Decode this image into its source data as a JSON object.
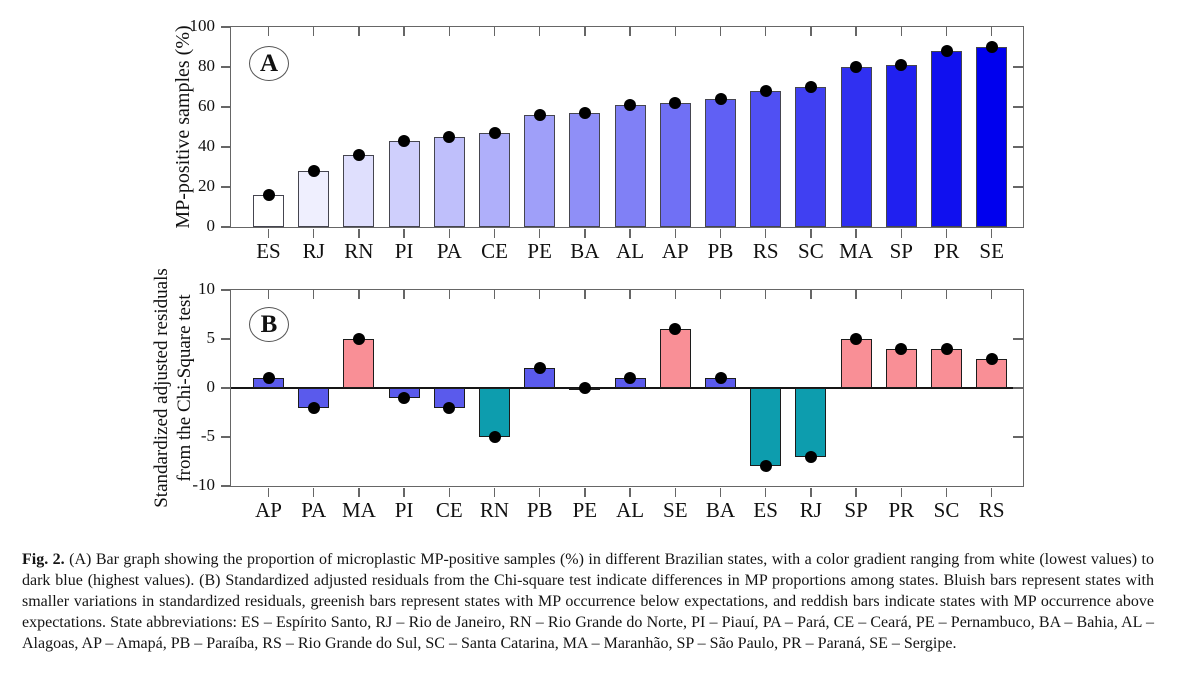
{
  "figure": {
    "caption_label": "Fig. 2.",
    "caption_text": "(A) Bar graph showing the proportion of microplastic MP-positive samples (%) in different Brazilian states, with a color gradient ranging from white (lowest values) to dark blue (highest values). (B) Standardized adjusted residuals from the Chi-square test indicate differences in MP proportions among states. Bluish bars represent states with smaller variations in standardized residuals, greenish bars represent states with MP occurrence below expectations, and reddish bars indicate states with MP occurrence above expectations. State abbreviations: ES – Espírito Santo, RJ – Rio de Janeiro, RN – Rio Grande do Norte, PI – Piauí, PA – Pará, CE – Ceará, PE – Pernambuco, BA – Bahia, AL – Alagoas, AP – Amapá, PB – Paraíba, RS – Rio Grande do Sul, SC – Santa Catarina, MA – Maranhão, SP – São Paulo, PR – Paraná, SE – Sergipe."
  },
  "chart_data": [
    {
      "id": "A",
      "type": "bar",
      "panel_label": "A",
      "ylabel": "MP-positive samples (%)",
      "ylim": [
        0,
        100
      ],
      "yticks": [
        0,
        20,
        40,
        60,
        80,
        100
      ],
      "grid": false,
      "marker": "black-dot-at-value",
      "categories": [
        "ES",
        "RJ",
        "RN",
        "PI",
        "PA",
        "CE",
        "PE",
        "BA",
        "AL",
        "AP",
        "PB",
        "RS",
        "SC",
        "MA",
        "SP",
        "PR",
        "SE"
      ],
      "values": [
        16,
        28,
        36,
        43,
        45,
        47,
        56,
        57,
        61,
        62,
        64,
        68,
        70,
        80,
        81,
        88,
        90
      ],
      "bar_colors": [
        "#FFFFFF",
        "#EFEFFE",
        "#DFDFFD",
        "#CFCFFC",
        "#BFBFFB",
        "#AFAFFA",
        "#9F9FF9",
        "#8F8FF7",
        "#8080F6",
        "#7070F5",
        "#6060F4",
        "#5050F3",
        "#4040F2",
        "#3030F1",
        "#2020F0",
        "#1010EF",
        "#0000EE"
      ],
      "bar_border_color": "#45454f",
      "gradient_note": "white (lowest) to dark blue (highest)"
    },
    {
      "id": "B",
      "type": "bar",
      "panel_label": "B",
      "ylabel": "Standardized adjusted residuals\nfrom the Chi-Square test",
      "ylim": [
        -10,
        10
      ],
      "yticks": [
        -10,
        -5,
        0,
        5,
        10
      ],
      "grid": false,
      "marker": "black-dot-at-value",
      "categories": [
        "AP",
        "PA",
        "MA",
        "PI",
        "CE",
        "RN",
        "PB",
        "PE",
        "AL",
        "SE",
        "BA",
        "ES",
        "RJ",
        "SP",
        "PR",
        "SC",
        "RS"
      ],
      "values": [
        1,
        -2,
        5,
        -1,
        -2,
        -5,
        2,
        0,
        1,
        6,
        1,
        -8,
        -7,
        5,
        4,
        4,
        3
      ],
      "bar_colors": [
        "#5A5AEC",
        "#5A5AEC",
        "#F98F96",
        "#5A5AEC",
        "#5A5AEC",
        "#0D9DAE",
        "#5A5AEC",
        "#5A5AEC",
        "#5A5AEC",
        "#F98F96",
        "#5A5AEC",
        "#0D9DAE",
        "#0D9DAE",
        "#F98F96",
        "#F98F96",
        "#F98F96",
        "#F98F96"
      ],
      "bar_border_color": "#1c1c1c",
      "color_meaning": {
        "bluish": "#5A5AEC",
        "greenish": "#0D9DAE",
        "reddish": "#F98F96"
      }
    }
  ]
}
